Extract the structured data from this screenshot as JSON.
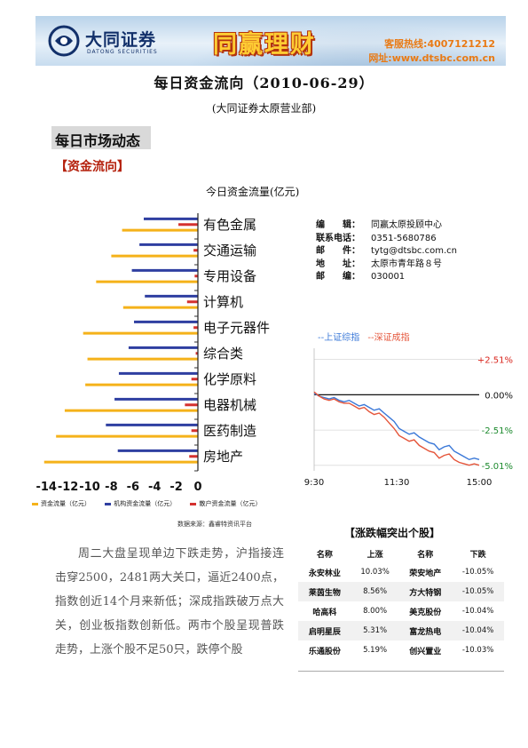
{
  "banner": {
    "brand_name": "大同证券",
    "brand_en": "DATONG SECURITIES",
    "slogan": "同赢理财",
    "hotline": "客服热线:4007121212",
    "website": "网址:www.dtsbc.com.cn",
    "colors": {
      "brand": "#12306a",
      "slogan": "#ffcc33",
      "accent": "#e97a14"
    }
  },
  "header": {
    "title": "每日资金流向（2010-06-29）",
    "subtitle": "(大同证券太原营业部)"
  },
  "section": {
    "title": "每日市场动态",
    "sub_heading": "【资金流向】"
  },
  "flow_chart": {
    "title": "今日资金流量(亿元)",
    "source": "数据来源：鑫睿特资讯平台",
    "colors": {
      "total": "#f5b21a",
      "institution": "#2f3fa1",
      "retail": "#d5312f"
    }
  },
  "chart_data": [
    {
      "type": "bar",
      "orientation": "horizontal",
      "categories": [
        "有色金属",
        "交通运输",
        "专用设备",
        "计算机",
        "电子元器件",
        "综合类",
        "化学原料",
        "电器机械",
        "医药制造",
        "房地产"
      ],
      "series": [
        {
          "name": "资金流量（亿元）",
          "values": [
            -7.0,
            -8.0,
            -9.4,
            -6.9,
            -10.6,
            -10.2,
            -10.4,
            -12.3,
            -13.1,
            -14.2
          ]
        },
        {
          "name": "机构资金流量（亿元）",
          "values": [
            -5.0,
            -5.4,
            -6.1,
            -4.9,
            -5.9,
            -6.4,
            -7.3,
            -7.7,
            -8.5,
            -7.4
          ]
        },
        {
          "name": "散户资金流量（亿元）",
          "values": [
            -1.8,
            -0.4,
            -0.3,
            -1.0,
            -0.4,
            -0.2,
            -0.6,
            -1.2,
            -0.6,
            -0.8
          ]
        }
      ],
      "xticks": [
        "-14",
        "-12",
        "-10",
        "-8",
        "-6",
        "-4",
        "-2",
        "0"
      ],
      "xlim": [
        -15,
        0
      ]
    },
    {
      "type": "line",
      "legend": [
        "上证综指",
        "深证成指"
      ],
      "x_ticks": [
        "9:30",
        "11:30",
        "15:00"
      ],
      "y_ticks": [
        "+2.51%",
        "0.00%",
        "-2.51%",
        "-5.01%"
      ],
      "ylim": [
        -5.4,
        3.3
      ],
      "series": [
        {
          "name": "上证综指",
          "color": "#3a78d8",
          "values": [
            0.1,
            -0.1,
            -0.2,
            -0.3,
            -0.2,
            -0.4,
            -0.5,
            -0.4,
            -0.6,
            -0.8,
            -0.7,
            -0.9,
            -1.1,
            -1.0,
            -1.3,
            -1.6,
            -1.9,
            -2.4,
            -2.6,
            -2.8,
            -2.7,
            -3.0,
            -3.2,
            -3.4,
            -3.5,
            -3.9,
            -3.7,
            -3.6,
            -4.0,
            -4.2,
            -4.4,
            -4.6,
            -4.5,
            -4.6
          ]
        },
        {
          "name": "深证成指",
          "color": "#e5553a",
          "values": [
            0.2,
            -0.1,
            -0.3,
            -0.4,
            -0.3,
            -0.5,
            -0.6,
            -0.6,
            -0.8,
            -1.0,
            -0.9,
            -1.2,
            -1.4,
            -1.3,
            -1.6,
            -2.0,
            -2.4,
            -2.9,
            -3.1,
            -3.3,
            -3.2,
            -3.6,
            -3.8,
            -4.0,
            -4.1,
            -4.5,
            -4.3,
            -4.2,
            -4.6,
            -4.8,
            -4.9,
            -5.0,
            -4.9,
            -5.0
          ]
        }
      ]
    }
  ],
  "contact": [
    {
      "label": "编　　辑：",
      "value": "同赢太原投顾中心"
    },
    {
      "label": "联系电话：",
      "value": "0351-5680786"
    },
    {
      "label": "邮　　件：",
      "value": "tytg@dtsbc.com.cn"
    },
    {
      "label": "地　　址：",
      "value": "太原市青年路８号"
    },
    {
      "label": "邮　　编：",
      "value": "030001"
    }
  ],
  "index_chart": {
    "legend_sh": "上证综指",
    "legend_sz": "深证成指"
  },
  "commentary": "周二大盘呈现单边下跌走势，沪指接连击穿2500，2481两大关口，逼近2400点，指数创近14个月来新低；深成指跌破万点大关，创业板指数创新低。两市个股呈现普跌走势，上涨个股不足50只，跌停个股",
  "stocks": {
    "heading": "【涨跌幅突出个股】",
    "columns": [
      "名称",
      "上涨",
      "名称",
      "下跌"
    ],
    "rows": [
      [
        "永安林业",
        "10.03%",
        "荣安地产",
        "-10.05%"
      ],
      [
        "莱茵生物",
        "8.56%",
        "方大特钢",
        "-10.05%"
      ],
      [
        "哈高科",
        "8.00%",
        "美克股份",
        "-10.04%"
      ],
      [
        "启明星辰",
        "5.31%",
        "富龙热电",
        "-10.04%"
      ],
      [
        "乐通股份",
        "5.19%",
        "创兴置业",
        "-10.03%"
      ]
    ]
  }
}
